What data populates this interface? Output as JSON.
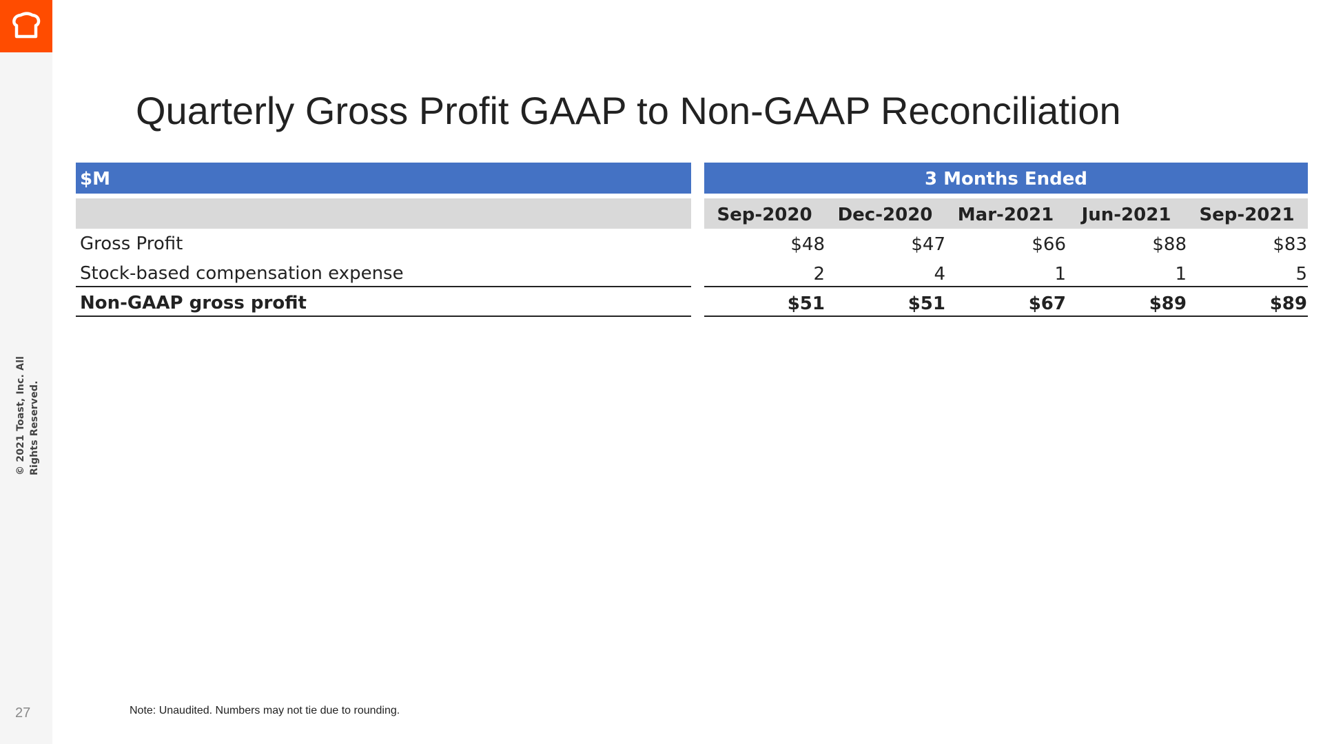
{
  "sidebar": {
    "logo_icon": "toast-logo-icon",
    "copyright": "© 2021 Toast, Inc. All Rights Reserved.",
    "page_number": "27"
  },
  "title": "Quarterly Gross Profit GAAP to Non-GAAP Reconciliation",
  "table": {
    "unit_header": "$M",
    "period_header": "3 Months Ended",
    "columns": [
      "Sep-2020",
      "Dec-2020",
      "Mar-2021",
      "Jun-2021",
      "Sep-2021"
    ],
    "rows": [
      {
        "label": "Gross Profit",
        "values": [
          "$48",
          "$47",
          "$66",
          "$88",
          "$83"
        ]
      },
      {
        "label": "Stock-based compensation expense",
        "values": [
          "2",
          "4",
          "1",
          "1",
          "5"
        ]
      },
      {
        "label": "Non-GAAP gross profit",
        "values": [
          "$51",
          "$51",
          "$67",
          "$89",
          "$89"
        ]
      }
    ]
  },
  "note": "Note: Unaudited. Numbers may not tie due to rounding.",
  "colors": {
    "accent": "#ff4c00",
    "header": "#4472c4",
    "subheader": "#d9d9d9"
  }
}
